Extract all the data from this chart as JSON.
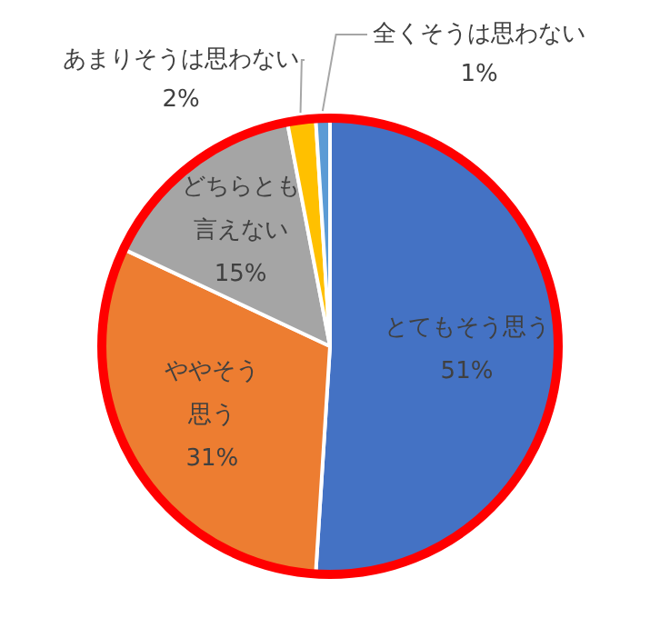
{
  "chart_data": {
    "type": "pie",
    "categories": [
      "とてもそう思う",
      "ややそう思う",
      "どちらとも言えない",
      "あまりそうは思わない",
      "全くそうは思わない"
    ],
    "values": [
      51,
      31,
      15,
      2,
      1
    ],
    "value_labels": [
      "51%",
      "31%",
      "15%",
      "2%",
      "1%"
    ],
    "colors": [
      "#4472c4",
      "#ed7d31",
      "#a5a5a5",
      "#ffc000",
      "#5b9bd5"
    ],
    "legend": false
  }
}
